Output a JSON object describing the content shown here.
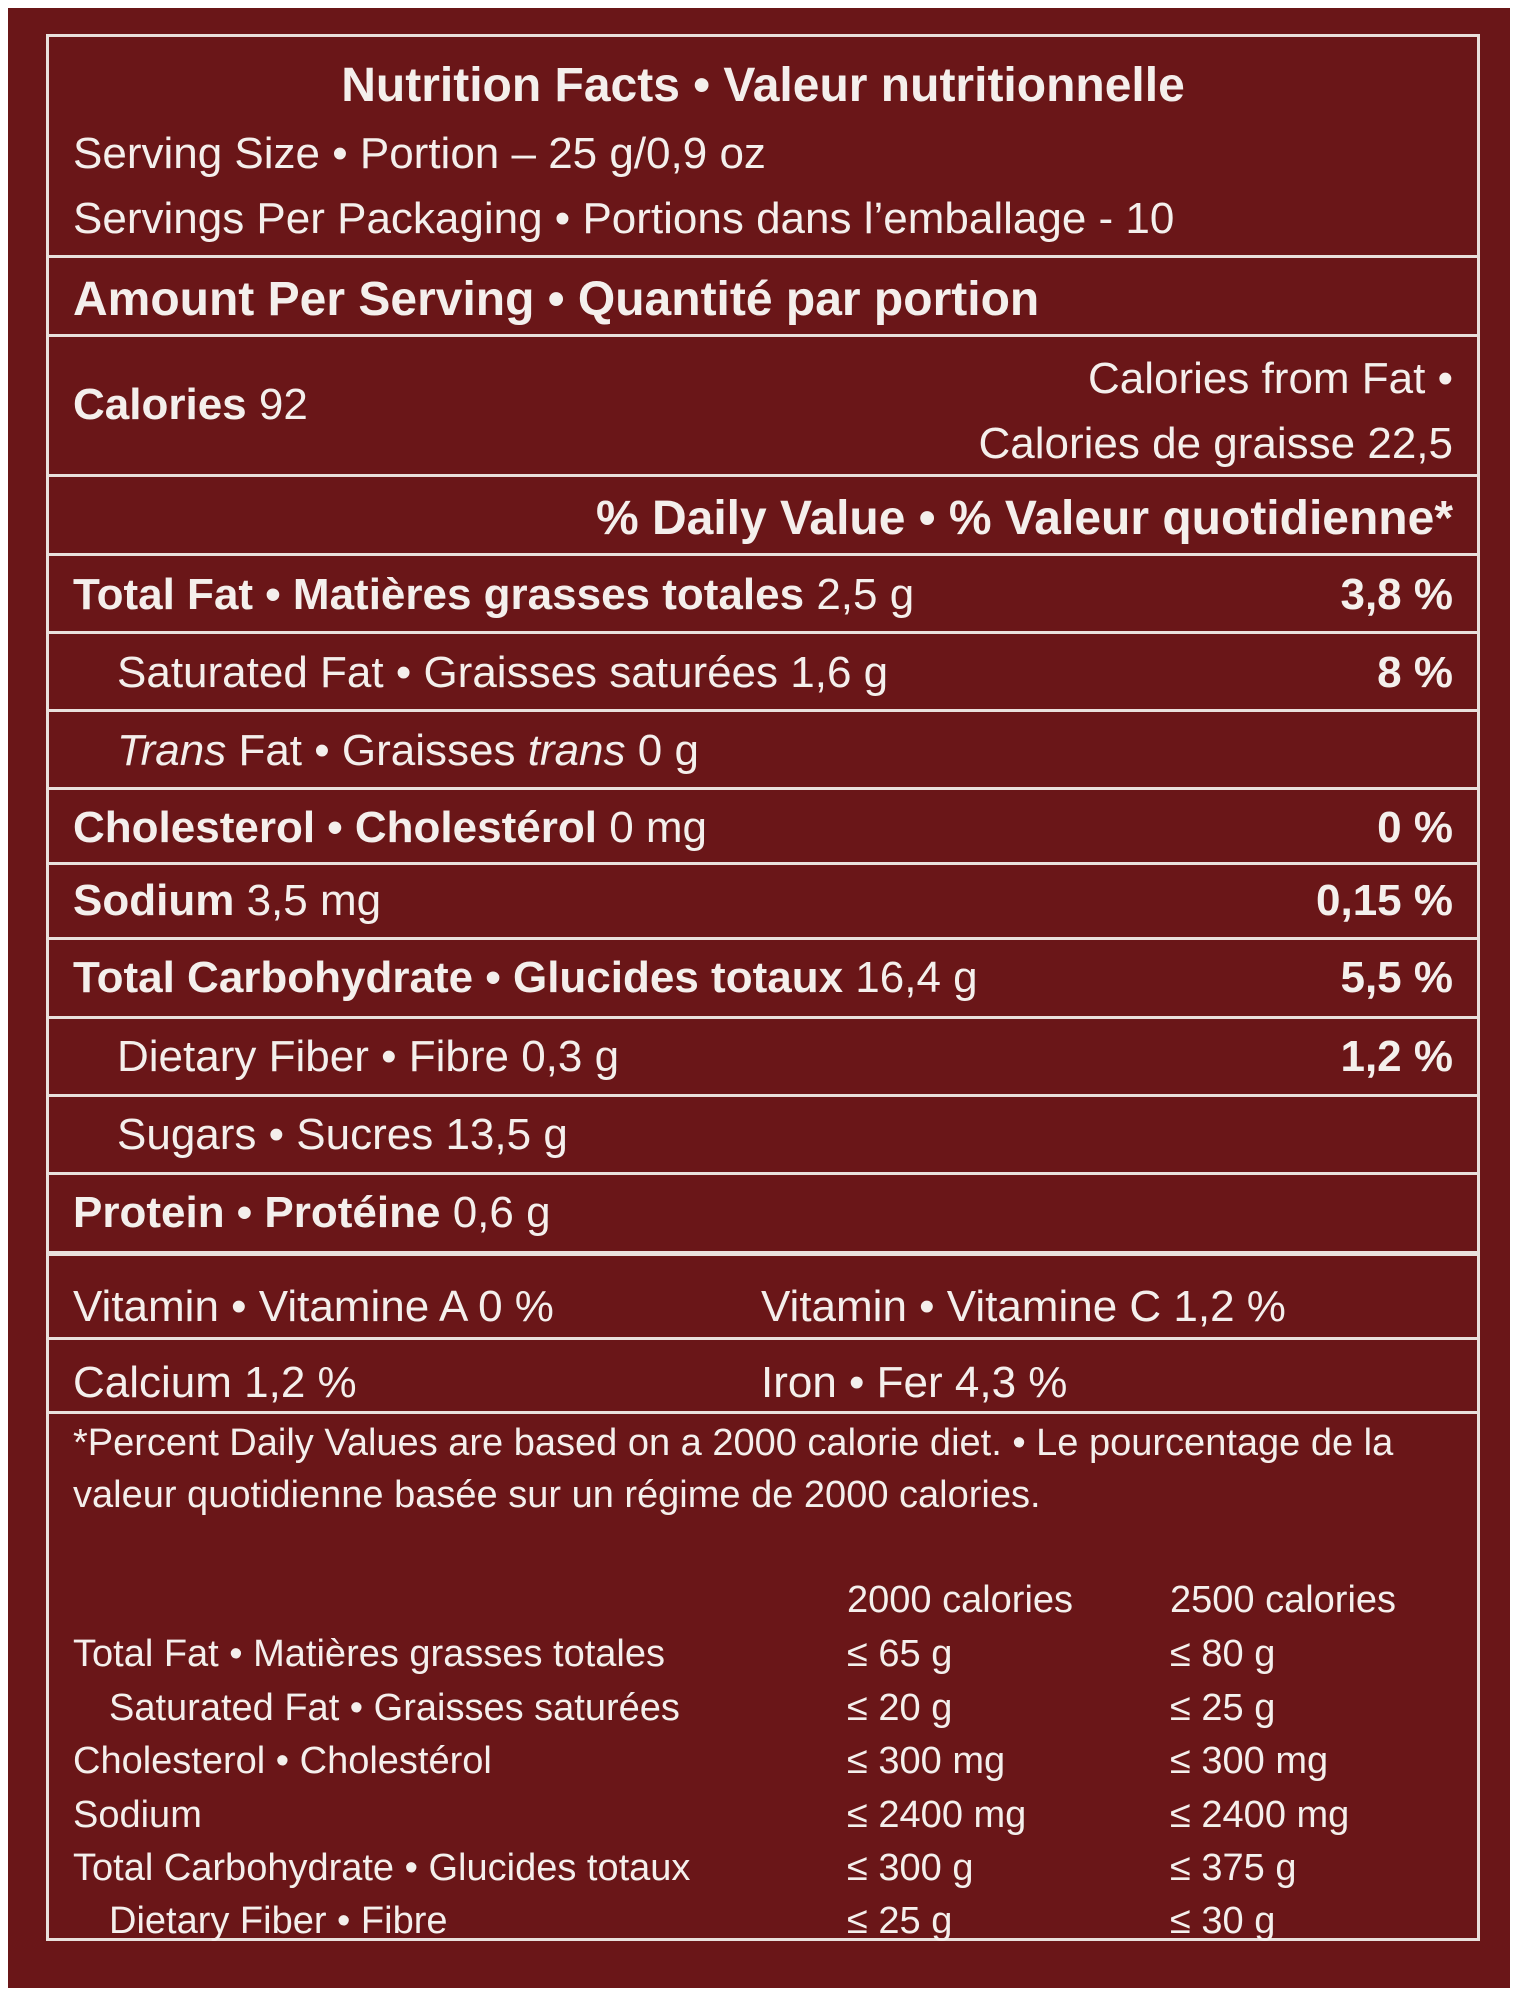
{
  "header": {
    "title": "Nutrition Facts • Valeur nutritionnelle",
    "serving_size": "Serving Size • Portion – 25 g/0,9 oz",
    "servings_per": "Servings Per Packaging • Portions dans l’emballage - 10"
  },
  "amount_per_serving": "Amount Per Serving • Quantité par portion",
  "calories": {
    "label": "Calories",
    "value": "92",
    "from_fat_line1": "Calories from Fat •",
    "from_fat_line2": "Calories de graisse 22,5"
  },
  "daily_value_header": "% Daily Value • % Valeur quotidienne*",
  "nutrients": {
    "total_fat": {
      "label": "Total Fat • Matières grasses totales",
      "amount": "2,5 g",
      "dv": "3,8 %"
    },
    "saturated_fat": {
      "label": "Saturated Fat • Graisses saturées",
      "amount": "1,6 g",
      "dv": "8 %"
    },
    "trans_fat": {
      "label_a": "Trans",
      "label_b": " Fat • Graisses ",
      "label_c": "trans",
      "amount": "0 g"
    },
    "cholesterol": {
      "label": "Cholesterol • Cholestérol",
      "amount": "0 mg",
      "dv": "0 %"
    },
    "sodium": {
      "label": "Sodium",
      "amount": "3,5 mg",
      "dv": "0,15 %"
    },
    "total_carb": {
      "label": "Total Carbohydrate • Glucides totaux",
      "amount": "16,4 g",
      "dv": "5,5 %"
    },
    "fiber": {
      "label": "Dietary Fiber • Fibre",
      "amount": "0,3 g",
      "dv": "1,2 %"
    },
    "sugars": {
      "label": "Sugars • Sucres",
      "amount": "13,5 g"
    },
    "protein": {
      "label": "Protein • Protéine",
      "amount": "0,6 g"
    }
  },
  "vitamins": {
    "vitamin_a": "Vitamin • Vitamine A 0 %",
    "vitamin_c": "Vitamin • Vitamine C 1,2 %",
    "calcium": "Calcium 1,2 %",
    "iron": "Iron • Fer 4,3 %"
  },
  "footnote": "*Percent Daily Values are based on a 2000 calorie diet. • Le pourcentage de la valeur quotidienne basée sur un régime de 2000 calories.",
  "reference_table": {
    "col_headers": [
      "2000 calories",
      "2500 calories"
    ],
    "rows": [
      {
        "label": "Total Fat • Matières grasses totales",
        "c2000": "≤ 65 g",
        "c2500": "≤ 80 g"
      },
      {
        "label": "Saturated Fat • Graisses saturées",
        "c2000": "≤ 20 g",
        "c2500": "≤ 25 g"
      },
      {
        "label": "Cholesterol • Cholestérol",
        "c2000": "≤ 300 mg",
        "c2500": "≤ 300 mg"
      },
      {
        "label": "Sodium",
        "c2000": "≤ 2400 mg",
        "c2500": "≤ 2400 mg"
      },
      {
        "label": "Total Carbohydrate • Glucides totaux",
        "c2000": "≤ 300 g",
        "c2500": "≤ 375 g"
      },
      {
        "label": "Dietary Fiber • Fibre",
        "c2000": "≤ 25 g",
        "c2500": "≤ 30 g"
      }
    ]
  },
  "colors": {
    "background": "#6a1618",
    "text": "#f4efec",
    "rule": "#e9e0dc"
  }
}
